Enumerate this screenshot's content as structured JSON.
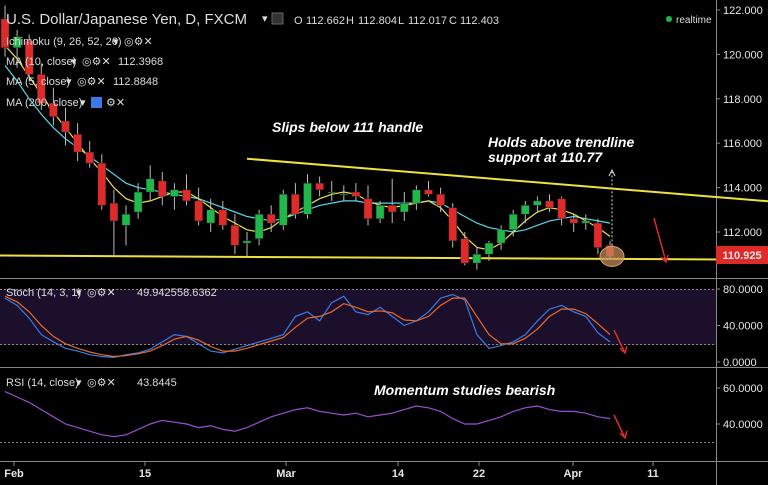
{
  "header": {
    "title": "U.S. Dollar/Japanese Yen, D, FXCM",
    "ohlc": [
      {
        "k": "O",
        "v": "112.662"
      },
      {
        "k": "H",
        "v": "112.804"
      },
      {
        "k": "L",
        "v": "112.017"
      },
      {
        "k": "C",
        "v": "112.403"
      }
    ],
    "realtime": "realtime"
  },
  "indicators": {
    "ichimoku": {
      "label": "Ichimoku (9, 26, 52, 26)"
    },
    "ma10": {
      "label": "MA (10, close)",
      "value": "112.3968",
      "color": "#58d8e8"
    },
    "ma5": {
      "label": "MA (5, close)",
      "value": "112.8848",
      "color": "#f0e050"
    },
    "ma200": {
      "label": "MA (200, close)"
    },
    "stoch": {
      "label": "Stoch (14, 3, 1)",
      "k": "49.9425",
      "d": "58.6362",
      "k_color": "#3a7be8",
      "d_color": "#e8692a"
    },
    "rsi": {
      "label": "RSI (14, close)",
      "value": "43.8445",
      "color": "#9a4fd0"
    }
  },
  "annotations": {
    "slips": "Slips below 111 handle",
    "holds_line1": "Holds above trendline",
    "holds_line2": "support at 110.77",
    "momentum": "Momentum studies bearish"
  },
  "price_tag": "110.925",
  "chart_data": [
    {
      "type": "candlestick",
      "title": "U.S. Dollar/Japanese Yen, D, FXCM",
      "ylim": [
        109.6,
        122.4
      ],
      "y_ticks": [
        "122.000",
        "120.000",
        "118.000",
        "116.000",
        "114.000",
        "112.000"
      ],
      "x_ticks": [
        "Feb",
        "15",
        "Mar",
        "14",
        "22",
        "Apr",
        "11"
      ],
      "colors": {
        "up": "#1fb84a",
        "down": "#e02a2a"
      },
      "candles": [
        [
          121.6,
          122.2,
          119.9,
          120.3
        ],
        [
          120.3,
          121.1,
          119.4,
          120.8
        ],
        [
          120.6,
          120.9,
          118.8,
          119.1
        ],
        [
          119.1,
          119.6,
          117.5,
          117.8
        ],
        [
          117.8,
          118.5,
          116.8,
          117.2
        ],
        [
          117.0,
          117.6,
          115.9,
          116.5
        ],
        [
          116.4,
          116.9,
          115.2,
          115.6
        ],
        [
          115.6,
          116.1,
          114.9,
          115.1
        ],
        [
          115.1,
          115.5,
          113.0,
          113.2
        ],
        [
          113.3,
          113.9,
          110.9,
          112.5
        ],
        [
          112.3,
          113.2,
          111.4,
          112.8
        ],
        [
          112.9,
          114.2,
          112.6,
          113.8
        ],
        [
          113.8,
          115.0,
          113.4,
          114.4
        ],
        [
          114.3,
          114.7,
          113.2,
          113.6
        ],
        [
          113.6,
          114.2,
          113.0,
          113.9
        ],
        [
          113.9,
          114.6,
          113.2,
          113.4
        ],
        [
          113.4,
          114.0,
          112.3,
          112.5
        ],
        [
          112.4,
          113.5,
          112.0,
          113.0
        ],
        [
          113.0,
          113.4,
          112.1,
          112.3
        ],
        [
          112.3,
          112.8,
          111.0,
          111.4
        ],
        [
          111.5,
          112.0,
          110.9,
          111.6
        ],
        [
          111.7,
          113.0,
          111.4,
          112.8
        ],
        [
          112.8,
          113.2,
          112.0,
          112.4
        ],
        [
          112.3,
          113.9,
          112.1,
          113.7
        ],
        [
          113.7,
          114.2,
          112.6,
          112.8
        ],
        [
          112.8,
          114.6,
          112.6,
          114.2
        ],
        [
          114.2,
          114.5,
          113.6,
          113.9
        ],
        [
          113.8,
          114.3,
          113.4,
          113.8
        ],
        [
          113.7,
          114.1,
          113.4,
          113.7
        ],
        [
          113.8,
          114.2,
          113.4,
          113.6
        ],
        [
          113.5,
          114.1,
          112.3,
          112.6
        ],
        [
          112.6,
          113.4,
          112.4,
          113.2
        ],
        [
          113.2,
          114.4,
          112.4,
          112.9
        ],
        [
          112.9,
          113.8,
          112.5,
          113.3
        ],
        [
          113.3,
          114.1,
          113.0,
          113.9
        ],
        [
          113.9,
          114.3,
          113.6,
          113.7
        ],
        [
          113.7,
          114.0,
          112.9,
          113.2
        ],
        [
          113.1,
          113.3,
          111.3,
          111.6
        ],
        [
          111.7,
          112.0,
          110.5,
          110.6
        ],
        [
          110.6,
          111.3,
          110.3,
          111.0
        ],
        [
          111.0,
          111.6,
          110.7,
          111.5
        ],
        [
          111.5,
          112.3,
          111.2,
          112.1
        ],
        [
          112.1,
          113.0,
          111.8,
          112.8
        ],
        [
          112.8,
          113.4,
          112.4,
          113.2
        ],
        [
          113.2,
          113.6,
          112.9,
          113.4
        ],
        [
          113.4,
          113.7,
          112.9,
          113.1
        ],
        [
          113.5,
          113.6,
          112.3,
          112.6
        ],
        [
          112.6,
          112.8,
          112.0,
          112.4
        ],
        [
          112.4,
          112.8,
          112.1,
          112.5
        ],
        [
          112.4,
          112.6,
          111.0,
          111.3
        ],
        [
          111.4,
          111.6,
          110.8,
          110.9
        ]
      ],
      "ma10": [
        119.5,
        118.8,
        118.0,
        117.3,
        116.7,
        116.2,
        115.8,
        115.4,
        115.0,
        114.6,
        114.2,
        114.0,
        113.9,
        113.8,
        113.7,
        113.6,
        113.5,
        113.3,
        113.1,
        112.9,
        112.7,
        112.6,
        112.5,
        112.6,
        112.8,
        113.0,
        113.2,
        113.3,
        113.4,
        113.4,
        113.3,
        113.3,
        113.3,
        113.3,
        113.3,
        113.4,
        113.3,
        113.0,
        112.7,
        112.4,
        112.2,
        112.1,
        112.0,
        112.1,
        112.3,
        112.5,
        112.6,
        112.7,
        112.6,
        112.5,
        112.4
      ],
      "ma5": [
        120.4,
        119.8,
        119.0,
        118.2,
        117.4,
        116.7,
        116.0,
        115.3,
        114.7,
        114.0,
        113.5,
        113.3,
        113.4,
        113.6,
        113.8,
        113.8,
        113.5,
        113.1,
        112.7,
        112.4,
        112.1,
        112.0,
        112.2,
        112.6,
        112.9,
        113.2,
        113.5,
        113.7,
        113.8,
        113.7,
        113.4,
        113.2,
        113.1,
        113.2,
        113.3,
        113.4,
        113.1,
        112.5,
        111.8,
        111.3,
        111.2,
        111.5,
        112.0,
        112.5,
        112.9,
        113.1,
        113.0,
        112.8,
        112.5,
        112.2,
        111.8
      ],
      "trendlines": [
        {
          "name": "resistance",
          "from": [
            20,
            115.3
          ],
          "to": [
            65,
            113.3
          ]
        },
        {
          "name": "support",
          "from": [
            -4,
            110.95
          ],
          "to": [
            63,
            110.75
          ]
        }
      ]
    },
    {
      "type": "line",
      "title": "Stoch (14, 3, 1)",
      "ylim": [
        0,
        80
      ],
      "y_ticks": [
        "80.0000",
        "40.0000",
        "0.0000"
      ],
      "series": [
        {
          "name": "%K",
          "values": [
            70,
            62,
            48,
            30,
            22,
            15,
            12,
            8,
            6,
            5,
            8,
            10,
            14,
            22,
            30,
            28,
            20,
            12,
            10,
            14,
            18,
            22,
            26,
            30,
            50,
            55,
            45,
            65,
            72,
            55,
            52,
            60,
            50,
            40,
            45,
            55,
            70,
            74,
            68,
            30,
            15,
            18,
            22,
            30,
            45,
            58,
            62,
            55,
            50,
            32,
            22
          ]
        },
        {
          "name": "%D",
          "values": [
            72,
            66,
            55,
            40,
            28,
            20,
            15,
            11,
            8,
            6,
            7,
            9,
            12,
            18,
            25,
            28,
            24,
            17,
            12,
            12,
            15,
            19,
            23,
            27,
            38,
            48,
            50,
            55,
            64,
            60,
            55,
            56,
            54,
            46,
            45,
            50,
            62,
            70,
            70,
            50,
            30,
            20,
            20,
            26,
            36,
            50,
            58,
            58,
            53,
            42,
            30
          ]
        }
      ]
    },
    {
      "type": "line",
      "title": "RSI (14, close)",
      "ylim": [
        20,
        70
      ],
      "y_ticks": [
        "60.0000",
        "40.0000"
      ],
      "series": [
        {
          "name": "RSI",
          "values": [
            58,
            55,
            52,
            48,
            44,
            40,
            38,
            36,
            34,
            33,
            34,
            37,
            40,
            42,
            41,
            40,
            38,
            39,
            37,
            36,
            38,
            41,
            44,
            46,
            48,
            49,
            47,
            46,
            45,
            46,
            44,
            45,
            46,
            48,
            50,
            49,
            47,
            43,
            40,
            40,
            42,
            44,
            47,
            49,
            50,
            48,
            47,
            47,
            46,
            44,
            43
          ]
        }
      ]
    }
  ]
}
